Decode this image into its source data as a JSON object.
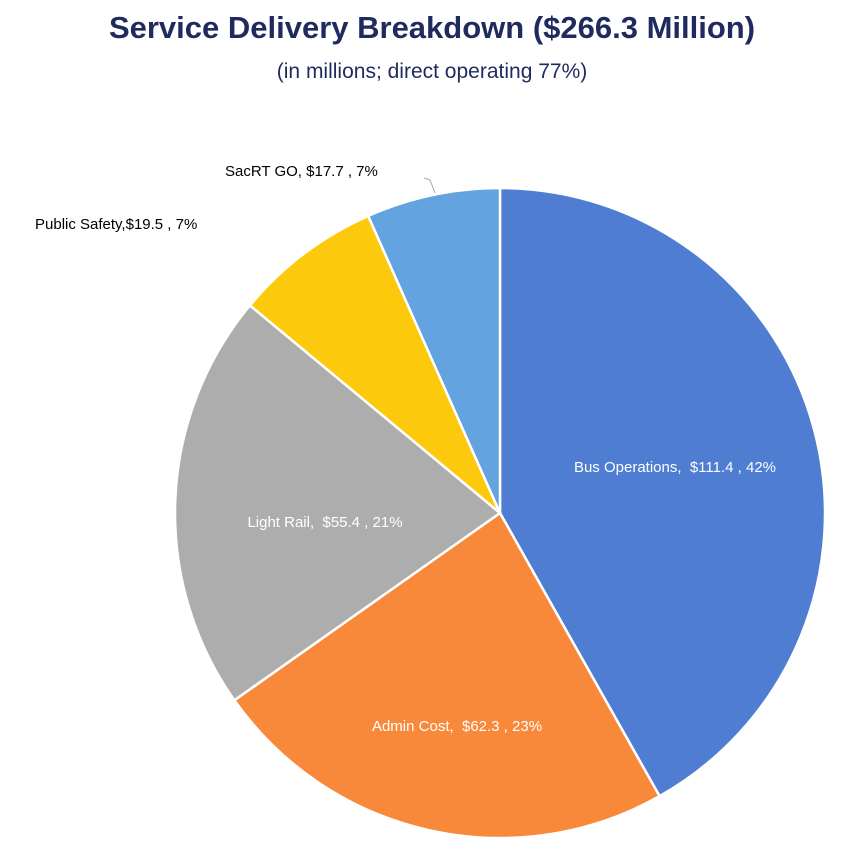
{
  "chart_data": {
    "type": "pie",
    "title": "Service Delivery Breakdown ($266.3 Million)",
    "subtitle": "(in millions; direct operating 77%)",
    "start": "top",
    "direction": "clockwise",
    "slices": [
      {
        "name": "Bus Operations",
        "value": 111.4,
        "percent": 42,
        "color": "#4e7dd1",
        "label": "Bus Operations,  $111.4 , 42%",
        "label_color": "#ffffff"
      },
      {
        "name": "Admin Cost",
        "value": 62.3,
        "percent": 23,
        "color": "#f8893a",
        "label": "Admin Cost,  $62.3 , 23%",
        "label_color": "#ffffff"
      },
      {
        "name": "Light Rail",
        "value": 55.4,
        "percent": 21,
        "color": "#adadad",
        "label": "Light Rail,  $55.4 , 21%",
        "label_color": "#ffffff"
      },
      {
        "name": "Public Safety",
        "value": 19.5,
        "percent": 7,
        "color": "#fdc90c",
        "label": "Public Safety,$19.5 , 7%",
        "label_color": "#000000"
      },
      {
        "name": "SacRT GO",
        "value": 17.7,
        "percent": 7,
        "color": "#62a3e0",
        "label": "SacRT GO, $17.7 , 7%",
        "label_color": "#000000"
      }
    ]
  }
}
